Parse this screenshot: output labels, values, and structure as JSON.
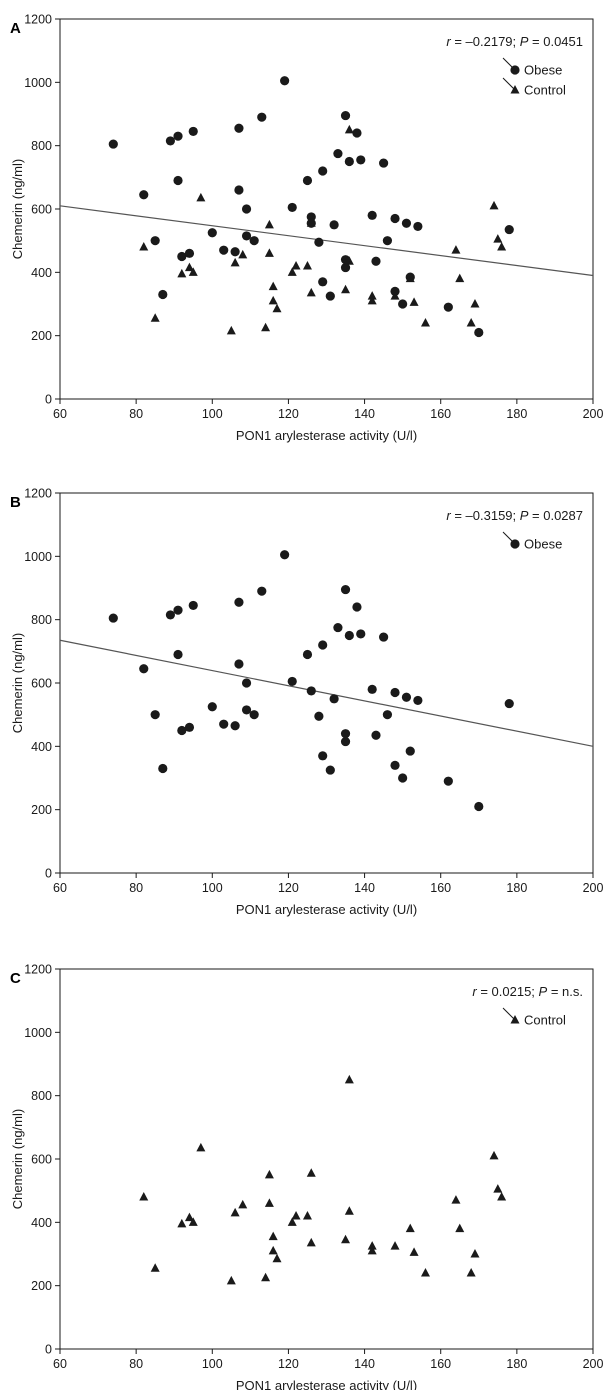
{
  "chart_data": [
    {
      "panel_label": "A",
      "type": "scatter",
      "xlabel": "PON1 arylesterase activity (U/l)",
      "ylabel": "Chemerin (ng/ml)",
      "xlim": [
        60,
        200
      ],
      "ylim": [
        0,
        1200
      ],
      "xticks": [
        60,
        80,
        100,
        120,
        140,
        160,
        180,
        200
      ],
      "yticks": [
        0,
        200,
        400,
        600,
        800,
        1000,
        1200
      ],
      "annotation": {
        "r_label": "r",
        "r_value": " = –0.2179; ",
        "p_label": "P",
        "p_value": " = 0.0451"
      },
      "legend_position": "top-right",
      "regression_line": {
        "x": [
          60,
          200
        ],
        "y": [
          610,
          390
        ]
      },
      "series": [
        {
          "name": "Obese",
          "marker": "circle",
          "points": [
            [
              74,
              805
            ],
            [
              82,
              645
            ],
            [
              85,
              500
            ],
            [
              87,
              330
            ],
            [
              89,
              815
            ],
            [
              91,
              830
            ],
            [
              91,
              690
            ],
            [
              92,
              450
            ],
            [
              94,
              460
            ],
            [
              95,
              845
            ],
            [
              100,
              525
            ],
            [
              103,
              470
            ],
            [
              106,
              465
            ],
            [
              107,
              855
            ],
            [
              107,
              660
            ],
            [
              109,
              600
            ],
            [
              109,
              515
            ],
            [
              111,
              500
            ],
            [
              113,
              890
            ],
            [
              119,
              1005
            ],
            [
              121,
              605
            ],
            [
              125,
              690
            ],
            [
              126,
              575
            ],
            [
              126,
              555
            ],
            [
              128,
              495
            ],
            [
              129,
              720
            ],
            [
              129,
              370
            ],
            [
              131,
              325
            ],
            [
              132,
              550
            ],
            [
              133,
              775
            ],
            [
              135,
              895
            ],
            [
              135,
              440
            ],
            [
              135,
              415
            ],
            [
              136,
              750
            ],
            [
              138,
              840
            ],
            [
              139,
              755
            ],
            [
              142,
              580
            ],
            [
              143,
              435
            ],
            [
              145,
              745
            ],
            [
              146,
              500
            ],
            [
              148,
              570
            ],
            [
              148,
              340
            ],
            [
              150,
              300
            ],
            [
              151,
              555
            ],
            [
              152,
              385
            ],
            [
              154,
              545
            ],
            [
              162,
              290
            ],
            [
              170,
              210
            ],
            [
              178,
              535
            ]
          ]
        },
        {
          "name": "Control",
          "marker": "triangle",
          "points": [
            [
              82,
              480
            ],
            [
              85,
              255
            ],
            [
              92,
              395
            ],
            [
              94,
              415
            ],
            [
              95,
              400
            ],
            [
              97,
              635
            ],
            [
              105,
              215
            ],
            [
              106,
              430
            ],
            [
              108,
              455
            ],
            [
              114,
              225
            ],
            [
              115,
              460
            ],
            [
              115,
              550
            ],
            [
              116,
              310
            ],
            [
              116,
              355
            ],
            [
              117,
              285
            ],
            [
              121,
              400
            ],
            [
              122,
              420
            ],
            [
              125,
              420
            ],
            [
              126,
              555
            ],
            [
              126,
              335
            ],
            [
              135,
              345
            ],
            [
              136,
              435
            ],
            [
              136,
              850
            ],
            [
              142,
              310
            ],
            [
              142,
              325
            ],
            [
              148,
              325
            ],
            [
              152,
              380
            ],
            [
              153,
              305
            ],
            [
              156,
              240
            ],
            [
              164,
              470
            ],
            [
              165,
              380
            ],
            [
              168,
              240
            ],
            [
              169,
              300
            ],
            [
              174,
              610
            ],
            [
              175,
              505
            ],
            [
              176,
              480
            ]
          ]
        }
      ]
    },
    {
      "panel_label": "B",
      "type": "scatter",
      "xlabel": "PON1 arylesterase activity (U/l)",
      "ylabel": "Chemerin (ng/ml)",
      "xlim": [
        60,
        200
      ],
      "ylim": [
        0,
        1200
      ],
      "xticks": [
        60,
        80,
        100,
        120,
        140,
        160,
        180,
        200
      ],
      "yticks": [
        0,
        200,
        400,
        600,
        800,
        1000,
        1200
      ],
      "annotation": {
        "r_label": "r",
        "r_value": " = –0.3159; ",
        "p_label": "P",
        "p_value": " = 0.0287"
      },
      "legend_position": "top-right",
      "regression_line": {
        "x": [
          60,
          200
        ],
        "y": [
          735,
          400
        ]
      },
      "series": [
        {
          "name": "Obese",
          "marker": "circle",
          "points": [
            [
              74,
              805
            ],
            [
              82,
              645
            ],
            [
              85,
              500
            ],
            [
              87,
              330
            ],
            [
              89,
              815
            ],
            [
              91,
              830
            ],
            [
              91,
              690
            ],
            [
              92,
              450
            ],
            [
              94,
              460
            ],
            [
              95,
              845
            ],
            [
              100,
              525
            ],
            [
              103,
              470
            ],
            [
              106,
              465
            ],
            [
              107,
              855
            ],
            [
              107,
              660
            ],
            [
              109,
              600
            ],
            [
              109,
              515
            ],
            [
              111,
              500
            ],
            [
              113,
              890
            ],
            [
              119,
              1005
            ],
            [
              121,
              605
            ],
            [
              125,
              690
            ],
            [
              126,
              575
            ],
            [
              128,
              495
            ],
            [
              129,
              720
            ],
            [
              129,
              370
            ],
            [
              131,
              325
            ],
            [
              132,
              550
            ],
            [
              133,
              775
            ],
            [
              135,
              895
            ],
            [
              135,
              440
            ],
            [
              135,
              415
            ],
            [
              136,
              750
            ],
            [
              138,
              840
            ],
            [
              139,
              755
            ],
            [
              142,
              580
            ],
            [
              143,
              435
            ],
            [
              145,
              745
            ],
            [
              146,
              500
            ],
            [
              148,
              570
            ],
            [
              148,
              340
            ],
            [
              150,
              300
            ],
            [
              151,
              555
            ],
            [
              152,
              385
            ],
            [
              154,
              545
            ],
            [
              162,
              290
            ],
            [
              170,
              210
            ],
            [
              178,
              535
            ]
          ]
        }
      ]
    },
    {
      "panel_label": "C",
      "type": "scatter",
      "xlabel": "PON1 arylesterase activity (U/l)",
      "ylabel": "Chemerin (ng/ml)",
      "xlim": [
        60,
        200
      ],
      "ylim": [
        0,
        1200
      ],
      "xticks": [
        60,
        80,
        100,
        120,
        140,
        160,
        180,
        200
      ],
      "yticks": [
        0,
        200,
        400,
        600,
        800,
        1000,
        1200
      ],
      "annotation": {
        "r_label": "r",
        "r_value": " = 0.0215; ",
        "p_label": "P",
        "p_value": " = n.s."
      },
      "legend_position": "top-right",
      "series": [
        {
          "name": "Control",
          "marker": "triangle",
          "points": [
            [
              82,
              480
            ],
            [
              85,
              255
            ],
            [
              92,
              395
            ],
            [
              94,
              415
            ],
            [
              95,
              400
            ],
            [
              97,
              635
            ],
            [
              105,
              215
            ],
            [
              106,
              430
            ],
            [
              108,
              455
            ],
            [
              114,
              225
            ],
            [
              115,
              460
            ],
            [
              115,
              550
            ],
            [
              116,
              310
            ],
            [
              116,
              355
            ],
            [
              117,
              285
            ],
            [
              121,
              400
            ],
            [
              122,
              420
            ],
            [
              125,
              420
            ],
            [
              126,
              555
            ],
            [
              126,
              335
            ],
            [
              135,
              345
            ],
            [
              136,
              435
            ],
            [
              136,
              850
            ],
            [
              142,
              310
            ],
            [
              142,
              325
            ],
            [
              148,
              325
            ],
            [
              152,
              380
            ],
            [
              153,
              305
            ],
            [
              156,
              240
            ],
            [
              164,
              470
            ],
            [
              165,
              380
            ],
            [
              168,
              240
            ],
            [
              169,
              300
            ],
            [
              174,
              610
            ],
            [
              175,
              505
            ],
            [
              176,
              480
            ]
          ]
        }
      ]
    }
  ]
}
